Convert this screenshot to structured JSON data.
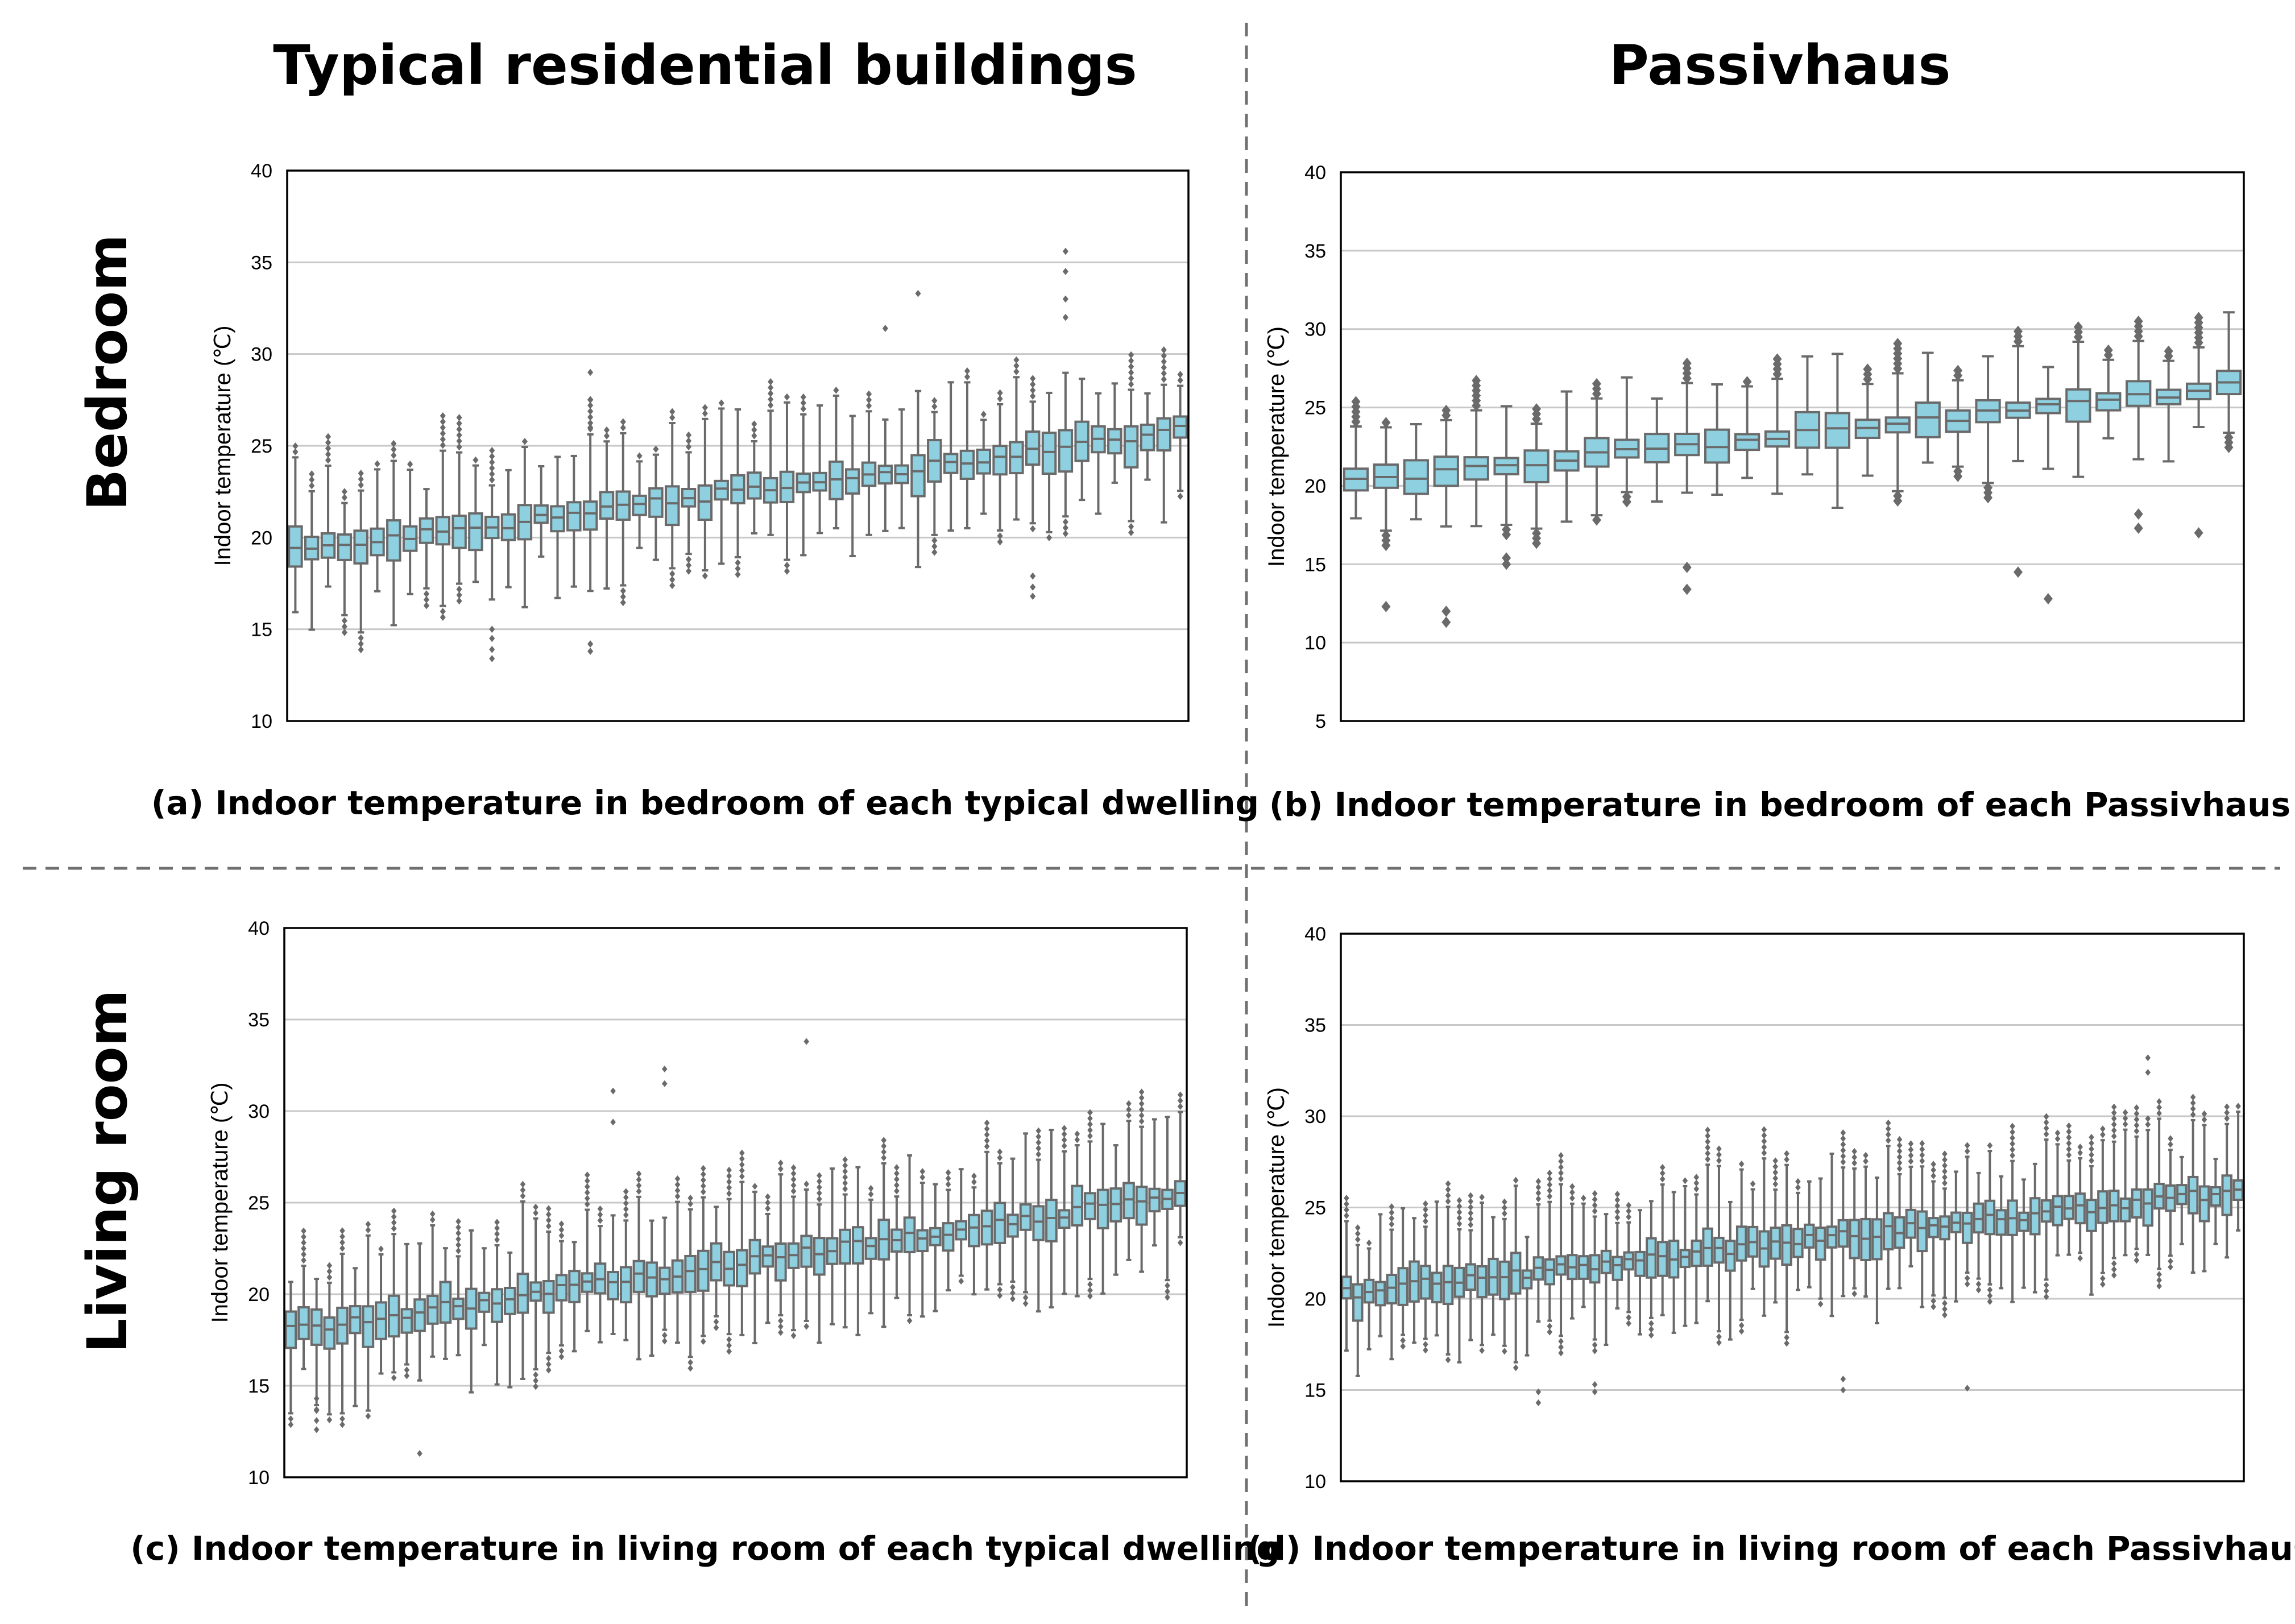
{
  "header": {
    "col_left": "Typical residential buildings",
    "col_right": "Passivhaus"
  },
  "rows": {
    "top": "Bedroom",
    "bottom": "Living room"
  },
  "colors": {
    "box_fill": "#8ecfe0",
    "box_edge": "#6a6a6a",
    "outlier": "#6a6a6a",
    "grid": "#c8c8c8"
  },
  "chart_data": [
    {
      "id": "a",
      "type": "box",
      "title": "(a) Indoor temperature in bedroom of each typical dwelling",
      "ylabel": "Indoor temperature (℃)",
      "ylim": [
        10,
        40
      ],
      "yticks": [
        10,
        15,
        20,
        25,
        30,
        35,
        40
      ],
      "n_boxes": 55,
      "median_start": 19.2,
      "median_end": 25.8,
      "extreme_outliers": [
        {
          "box": 12,
          "values": [
            13.4,
            13.9,
            14.5,
            15.0
          ]
        },
        {
          "box": 18,
          "values": [
            13.8,
            14.2,
            26.0,
            27.5,
            29.0
          ]
        },
        {
          "box": 36,
          "values": [
            31.4
          ]
        },
        {
          "box": 38,
          "values": [
            33.3
          ]
        },
        {
          "box": 45,
          "values": [
            16.8,
            17.3,
            17.9
          ]
        },
        {
          "box": 47,
          "values": [
            35.6,
            34.5,
            33.0,
            32.0
          ]
        }
      ]
    },
    {
      "id": "b",
      "type": "box",
      "title": "(b) Indoor temperature in bedroom of each Passivhaus",
      "ylabel": "Indoor temperature (℃)",
      "ylim": [
        5,
        40
      ],
      "yticks": [
        5,
        10,
        15,
        20,
        25,
        30,
        35,
        40
      ],
      "n_boxes": 30,
      "median_start": 20.2,
      "median_end": 26.3,
      "extreme_outliers": [
        {
          "box": 1,
          "values": [
            12.3
          ]
        },
        {
          "box": 3,
          "values": [
            11.3,
            12.0
          ]
        },
        {
          "box": 5,
          "values": [
            15.0,
            15.4
          ]
        },
        {
          "box": 11,
          "values": [
            13.4,
            14.8
          ]
        },
        {
          "box": 22,
          "values": [
            14.5
          ]
        },
        {
          "box": 23,
          "values": [
            12.8
          ]
        },
        {
          "box": 26,
          "values": [
            17.3,
            18.2
          ]
        },
        {
          "box": 28,
          "values": [
            17.0
          ]
        }
      ]
    },
    {
      "id": "c",
      "type": "box",
      "title": "(c) Indoor temperature in living room of each typical dwelling",
      "ylabel": "Indoor temperature (℃)",
      "ylim": [
        10,
        40
      ],
      "yticks": [
        10,
        15,
        20,
        25,
        30,
        35,
        40
      ],
      "n_boxes": 70,
      "median_start": 18.0,
      "median_end": 25.4,
      "extreme_outliers": [
        {
          "box": 2,
          "values": [
            12.6,
            13.1,
            13.7,
            14.3
          ]
        },
        {
          "box": 10,
          "values": [
            11.3
          ]
        },
        {
          "box": 25,
          "values": [
            31.1,
            29.4
          ]
        },
        {
          "box": 29,
          "values": [
            32.3,
            31.5
          ]
        },
        {
          "box": 40,
          "values": [
            33.8
          ]
        }
      ]
    },
    {
      "id": "d",
      "type": "box",
      "title": "(d) Indoor temperature in living room of each Passivhaus",
      "ylabel": "Indoor temperature (℃)",
      "ylim": [
        10,
        40
      ],
      "yticks": [
        10,
        15,
        20,
        25,
        30,
        35,
        40
      ],
      "n_boxes": 80,
      "median_start": 20.3,
      "median_end": 25.9,
      "extreme_outliers": [
        {
          "box": 17,
          "values": [
            14.3,
            14.9
          ]
        },
        {
          "box": 22,
          "values": [
            14.9,
            15.3
          ]
        },
        {
          "box": 44,
          "values": [
            15.0,
            15.6
          ]
        },
        {
          "box": 55,
          "values": [
            15.1
          ]
        },
        {
          "box": 71,
          "values": [
            33.2,
            32.4
          ]
        }
      ]
    }
  ]
}
